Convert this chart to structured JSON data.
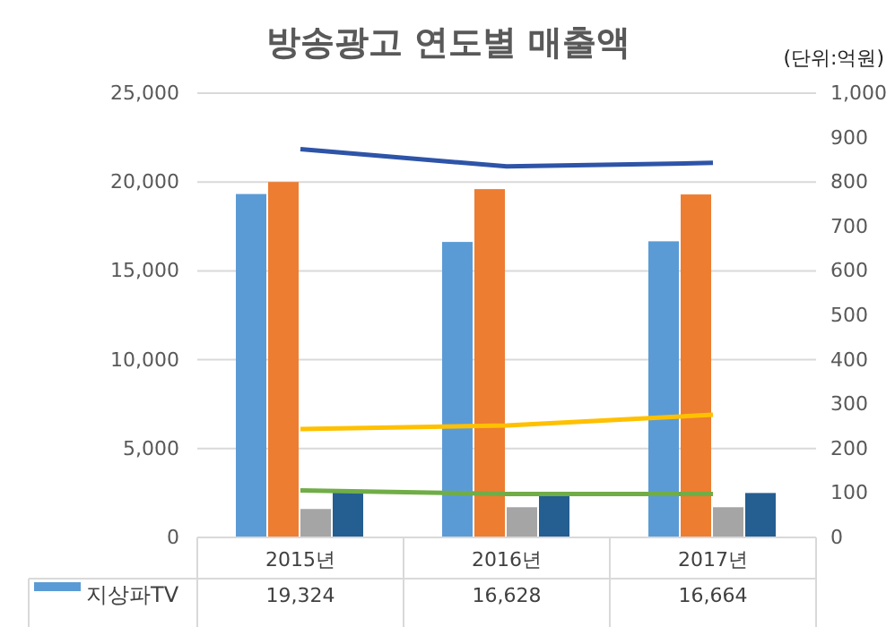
{
  "chart_data": {
    "type": "bar",
    "title": "방송광고 연도별 매출액",
    "annotations": [
      "(단위:억원)"
    ],
    "categories": [
      "2015년",
      "2016년",
      "2017년"
    ],
    "series": [
      {
        "name": "지상파TV",
        "color": "#5b9bd5",
        "values": [
          19324,
          16628,
          16664
        ],
        "value_labels": [
          "19,324",
          "16,628",
          "16,664"
        ]
      },
      {
        "color": "#ed7d31",
        "values": [
          20000,
          19600,
          19300
        ]
      },
      {
        "color": "#a5a5a5",
        "values": [
          1600,
          1700,
          1700
        ]
      },
      {
        "color": "#255e91",
        "values": [
          2600,
          2500,
          2500
        ]
      },
      {
        "type": "line",
        "axis": "y2",
        "color": "#2e54a8",
        "values": [
          874,
          835,
          843
        ]
      },
      {
        "type": "line",
        "axis": "y2",
        "color": "#ffc000",
        "values": [
          244,
          252,
          276
        ]
      },
      {
        "type": "line",
        "axis": "y2",
        "color": "#70ad47",
        "values": [
          106,
          98,
          98
        ]
      }
    ],
    "ylim": [
      0,
      25000
    ],
    "yticks": [
      {
        "value": 0,
        "label": "0"
      },
      {
        "value": 5000,
        "label": "5,000"
      },
      {
        "value": 10000,
        "label": "10,000"
      },
      {
        "value": 15000,
        "label": "15,000"
      },
      {
        "value": 20000,
        "label": "20,000"
      },
      {
        "value": 25000,
        "label": "25,000"
      }
    ],
    "y2lim": [
      0,
      1000
    ],
    "y2ticks": [
      {
        "value": 0,
        "label": "0"
      },
      {
        "value": 100,
        "label": "100"
      },
      {
        "value": 200,
        "label": "200"
      },
      {
        "value": 300,
        "label": "300"
      },
      {
        "value": 400,
        "label": "400"
      },
      {
        "value": 500,
        "label": "500"
      },
      {
        "value": 600,
        "label": "600"
      },
      {
        "value": 700,
        "label": "700"
      },
      {
        "value": 800,
        "label": "800"
      },
      {
        "value": 900,
        "label": "900"
      },
      {
        "value": 1000,
        "label": "1,000"
      }
    ],
    "grid": "y",
    "legend": "bottom"
  }
}
